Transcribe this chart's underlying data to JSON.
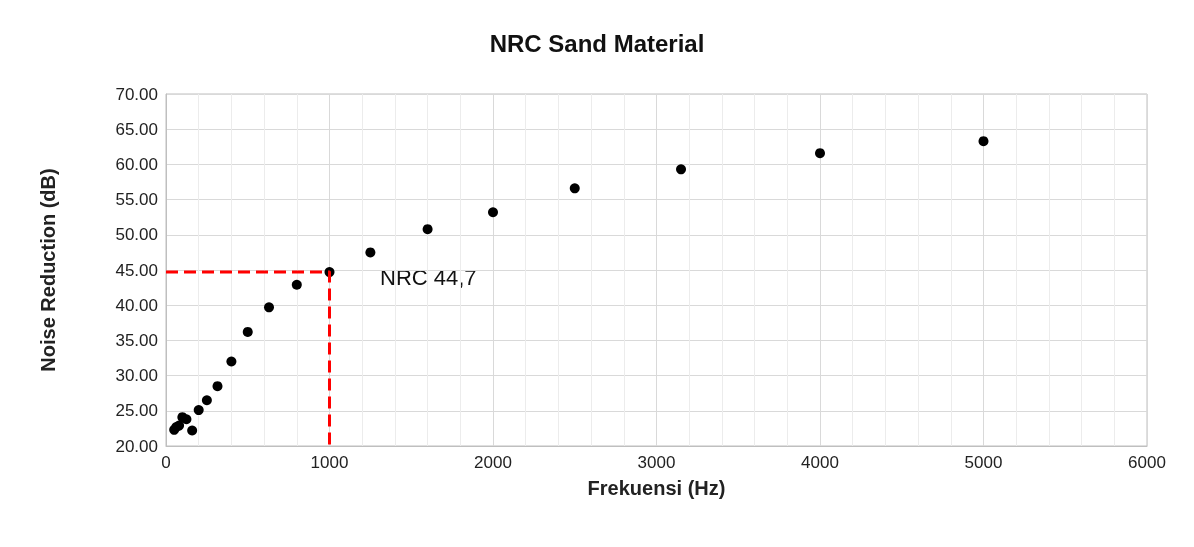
{
  "chart_data": {
    "type": "scatter",
    "title": "NRC Sand Material",
    "xlabel": "Frekuensi (Hz)",
    "ylabel": "Noise Reduction (dB)",
    "series": [
      {
        "color": "#000000",
        "marker": "circle",
        "x": [
          50,
          63,
          80,
          100,
          125,
          160,
          200,
          250,
          315,
          400,
          500,
          630,
          800,
          1000,
          1250,
          1600,
          2000,
          2500,
          3150,
          4000,
          5000
        ],
        "values": [
          22.3,
          22.7,
          22.9,
          24.1,
          23.8,
          22.2,
          25.1,
          26.5,
          28.5,
          32.0,
          36.2,
          39.7,
          42.9,
          44.7,
          47.5,
          50.8,
          53.2,
          56.6,
          59.3,
          61.6,
          63.3
        ]
      },
      {
        "type": "line",
        "color": "#ff0000",
        "line_style": "dashed",
        "marker": "none",
        "x": [
          0,
          1000,
          1000
        ],
        "values": [
          44.7,
          44.7,
          20
        ]
      }
    ],
    "annotations": [
      "NRC 44,7"
    ],
    "xlim": [
      0,
      6000
    ],
    "xticks": [
      0,
      1000,
      2000,
      3000,
      4000,
      5000,
      6000
    ],
    "ylim": [
      20,
      70
    ],
    "yticks": [
      {
        "value": 20,
        "label": "20.00"
      },
      {
        "value": 25,
        "label": "25.00"
      },
      {
        "value": 30,
        "label": "30.00"
      },
      {
        "value": 35,
        "label": "35.00"
      },
      {
        "value": 40,
        "label": "40.00"
      },
      {
        "value": 45,
        "label": "45.00"
      },
      {
        "value": 50,
        "label": "50.00"
      },
      {
        "value": 55,
        "label": "55.00"
      },
      {
        "value": 60,
        "label": "60.00"
      },
      {
        "value": 65,
        "label": "65.00"
      },
      {
        "value": 70,
        "label": "70.00"
      }
    ],
    "grid": true
  }
}
